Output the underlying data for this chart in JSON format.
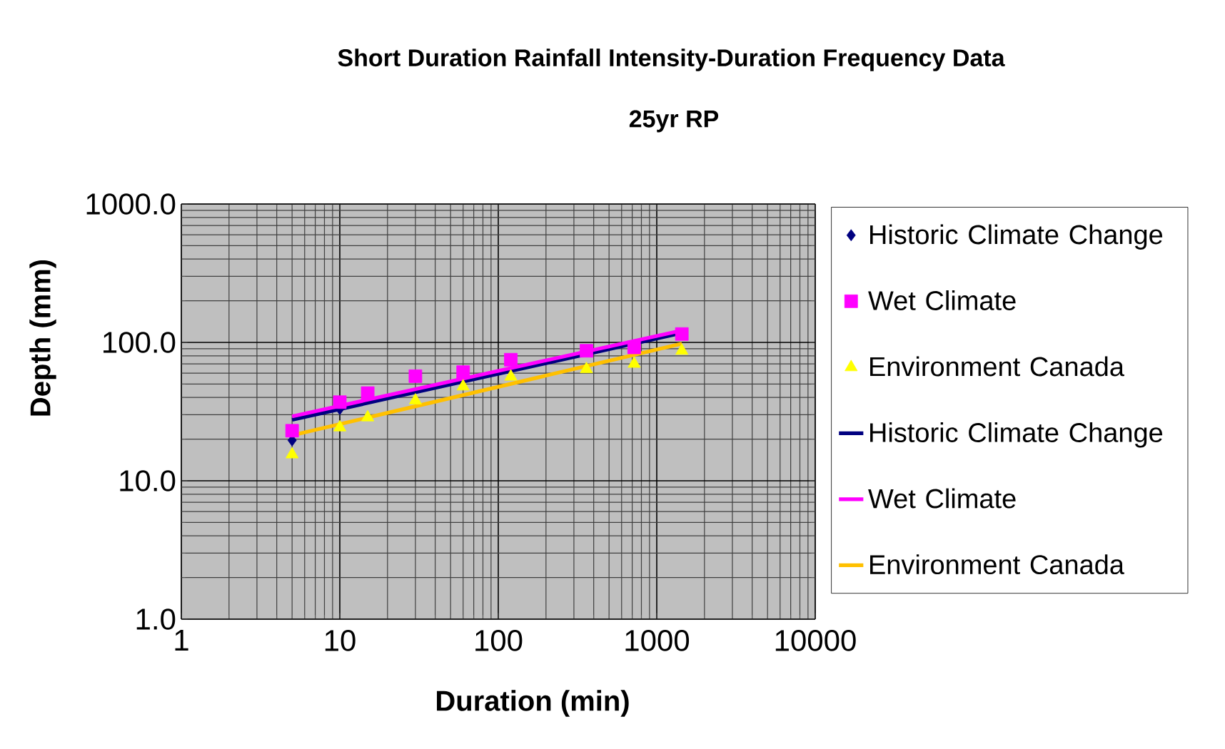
{
  "chart_data": {
    "type": "scatter",
    "title": "Short Duration Rainfall Intensity-Duration Frequency Data",
    "subtitle": "25yr RP",
    "xlabel": "Duration (min)",
    "ylabel": "Depth (mm)",
    "log": "xy",
    "grid": true,
    "legend": "right",
    "xlim": [
      1,
      10000
    ],
    "xticks": [
      1,
      10,
      100,
      1000,
      10000
    ],
    "ylim": [
      1,
      1000
    ],
    "yticks": [
      {
        "value": 1,
        "label": "1.0"
      },
      {
        "value": 10,
        "label": "10.0"
      },
      {
        "value": 100,
        "label": "100.0"
      },
      {
        "value": 1000,
        "label": "1000.0"
      }
    ],
    "series": [
      {
        "name": "Historic Climate Change",
        "marker": "diamond",
        "color": "#000080",
        "x": [
          5,
          10
        ],
        "values": [
          19.6,
          33
        ]
      },
      {
        "name": "Wet Climate",
        "marker": "square",
        "color": "#ff00ff",
        "x": [
          5,
          10,
          15,
          30,
          60,
          120,
          360,
          720,
          1440
        ],
        "values": [
          23,
          37,
          43,
          57,
          61,
          75,
          87,
          92,
          115
        ]
      },
      {
        "name": "Environment Canada",
        "marker": "triangle",
        "color": "#ffff00",
        "x": [
          5,
          10,
          15,
          30,
          60,
          120,
          360,
          720,
          1440
        ],
        "values": [
          15.5,
          24.3,
          28.7,
          38,
          48,
          56.5,
          64,
          70,
          87
        ]
      },
      {
        "name": "Historic Climate Change",
        "type": "line",
        "marker": "none",
        "color": "#000080",
        "x": [
          5,
          1440
        ],
        "values": [
          27.6,
          117
        ]
      },
      {
        "name": "Wet Climate",
        "type": "line",
        "marker": "none",
        "color": "#ff00ff",
        "x": [
          5,
          1440
        ],
        "values": [
          29.2,
          122
        ]
      },
      {
        "name": "Environment Canada",
        "type": "line",
        "marker": "none",
        "color": "#ffc000",
        "x": [
          5,
          1440
        ],
        "values": [
          21.3,
          98
        ]
      }
    ]
  }
}
